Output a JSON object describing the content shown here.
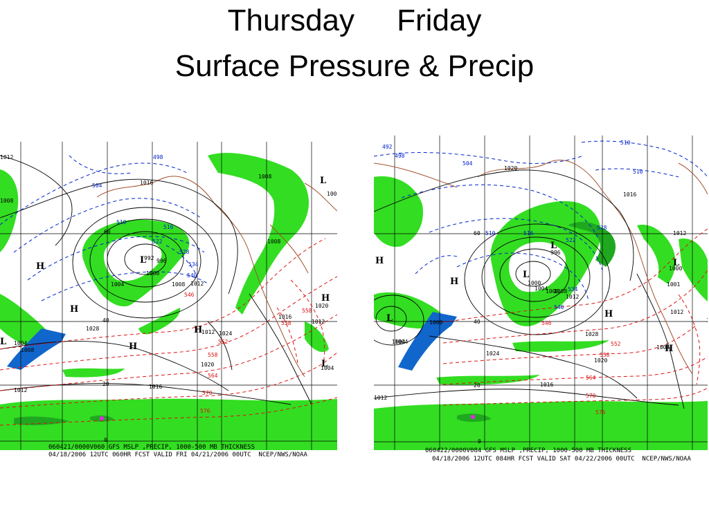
{
  "title": {
    "line1": "Thursday     Friday",
    "line2": "Surface Pressure & Precip"
  },
  "panels": [
    {
      "id": "thursday",
      "footer_line1": "060421/0000V060 GFS MSLP ,PRECIP, 1000-500 MB THICKNESS",
      "footer_line2": "04/18/2006 12UTC 060HR FCST VALID FRI 04/21/2006 00UTC  NCEP/NWS/NOAA",
      "lat_labels": [
        "60",
        "40",
        "20",
        "0"
      ],
      "isobar_labels": [
        "1012",
        "1016",
        "1008",
        "1008",
        "1008",
        "1004",
        "1000",
        "992",
        "996",
        "1008",
        "1012",
        "1020",
        "1028",
        "1024",
        "1004",
        "1008",
        "1016",
        "1012",
        "1020",
        "1016",
        "1012",
        "1004",
        "1000"
      ],
      "thickness_labels": [
        "498",
        "504",
        "510",
        "516",
        "522",
        "528",
        "534",
        "540",
        "546",
        "552",
        "558",
        "564",
        "570",
        "576",
        "558",
        "558"
      ],
      "pressure_centers": [
        "H",
        "H",
        "L",
        "L",
        "H",
        "H",
        "L",
        "H",
        "L"
      ]
    },
    {
      "id": "friday",
      "footer_line1": "060422/0000V084 GFS MSLP ,PRECIP, 1000-500 MB THICKNESS",
      "footer_line2": "04/18/2006 12UTC 084HR FCST VALID SAT 04/22/2006 00UTC  NCEP/NWS/NOAA",
      "lat_labels": [
        "60",
        "40",
        "20",
        "0"
      ],
      "isobar_labels": [
        "1020",
        "1016",
        "1012",
        "1000",
        "1004",
        "1008",
        "996",
        "1000",
        "1004",
        "1008",
        "1012",
        "1028",
        "1024",
        "1020",
        "1016",
        "1012",
        "1008",
        "1012",
        "1000",
        "1001",
        "1008",
        "1004"
      ],
      "thickness_labels": [
        "492",
        "498",
        "504",
        "510",
        "510",
        "510",
        "516",
        "522",
        "528",
        "534",
        "540",
        "546",
        "552",
        "558",
        "564",
        "570",
        "576"
      ],
      "pressure_centers": [
        "H",
        "L",
        "L",
        "L",
        "H",
        "L",
        "H",
        "H"
      ]
    }
  ],
  "colors": {
    "precip_light": "#33dd22",
    "precip_mid": "#1fa81f",
    "precip_heavy": "#1166cc",
    "precip_extreme": "#ee22ee",
    "isobar": "#000000",
    "thickness_cold": "#0022cc",
    "thickness_warm": "#dd1111",
    "coast": "#a0522d",
    "grid": "#000000"
  }
}
